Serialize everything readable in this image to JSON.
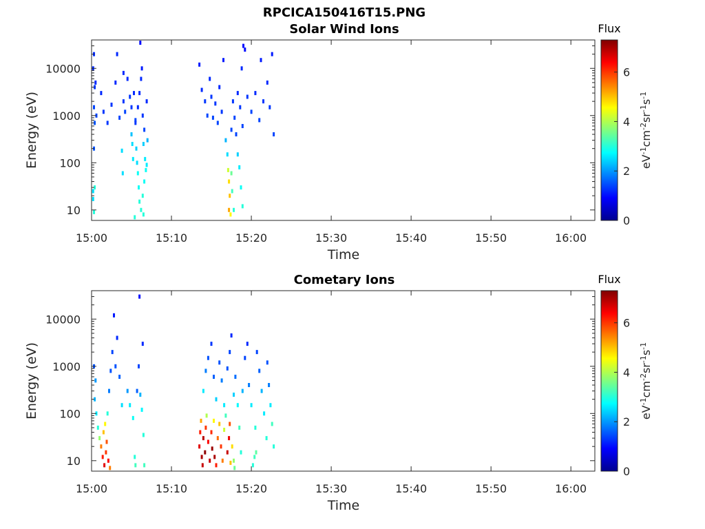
{
  "figure_title": "RPCICA150416T15.PNG",
  "colormap": [
    "#00008f",
    "#0000ff",
    "#0080ff",
    "#00ffff",
    "#80ff80",
    "#ffff00",
    "#ff8000",
    "#ff0000",
    "#800000"
  ],
  "chart_data": [
    {
      "type": "heatmap",
      "title": "Solar Wind Ions",
      "xlabel": "Time",
      "ylabel": "Energy (eV)",
      "x_ticks": [
        "15:00",
        "15:10",
        "15:20",
        "15:30",
        "15:40",
        "15:50",
        "16:00"
      ],
      "xlim_minutes": [
        0,
        63
      ],
      "y_scale": "log",
      "y_ticks": [
        "10",
        "100",
        "1000",
        "10000"
      ],
      "ylim": [
        6,
        40000
      ],
      "colorbar": {
        "title": "Flux",
        "ticks": [
          "0",
          "2",
          "4",
          "6"
        ],
        "range": [
          0,
          7.3
        ],
        "unit_base": [
          "eV",
          "cm",
          "sr",
          "s"
        ],
        "unit_exp": [
          "-1",
          "-2",
          "-1",
          "-1"
        ]
      },
      "points": [
        [
          0.2,
          17,
          2.5
        ],
        [
          0.2,
          25,
          2.5
        ],
        [
          0.3,
          200,
          1.5
        ],
        [
          0.4,
          700,
          1.5
        ],
        [
          0.3,
          1500,
          1.4
        ],
        [
          0.4,
          4000,
          1.3
        ],
        [
          0.2,
          10000,
          1.2
        ],
        [
          0.3,
          20000,
          1.2
        ],
        [
          0.5,
          5000,
          1.2
        ],
        [
          0.6,
          1000,
          1.4
        ],
        [
          0.3,
          9,
          3
        ],
        [
          0.4,
          30,
          3
        ],
        [
          1.2,
          3000,
          1.2
        ],
        [
          1.5,
          1200,
          1.3
        ],
        [
          2.0,
          700,
          1.3
        ],
        [
          2.5,
          1700,
          1.3
        ],
        [
          3.0,
          5000,
          1.2
        ],
        [
          3.2,
          20000,
          1.2
        ],
        [
          3.5,
          900,
          1.4
        ],
        [
          4.0,
          2000,
          1.3
        ],
        [
          4.5,
          6000,
          1.2
        ],
        [
          4.0,
          8000,
          1.2
        ],
        [
          3.8,
          180,
          2.5
        ],
        [
          3.9,
          60,
          2.5
        ],
        [
          4.2,
          1200,
          1.4
        ],
        [
          5.0,
          400,
          2.3
        ],
        [
          5.1,
          250,
          2.5
        ],
        [
          5.2,
          120,
          2.6
        ],
        [
          5.0,
          1500,
          1.3
        ],
        [
          5.3,
          3000,
          1.2
        ],
        [
          5.5,
          800,
          1.4
        ],
        [
          5.6,
          200,
          2.4
        ],
        [
          5.7,
          100,
          2.5
        ],
        [
          5.8,
          60,
          2.8
        ],
        [
          5.9,
          30,
          2.8
        ],
        [
          6.0,
          15,
          3
        ],
        [
          5.4,
          7,
          3
        ],
        [
          5.5,
          700,
          1.3
        ],
        [
          5.8,
          1500,
          1.2
        ],
        [
          6.0,
          3000,
          1.2
        ],
        [
          6.2,
          6000,
          1.2
        ],
        [
          6.3,
          10000,
          1.1
        ],
        [
          6.1,
          35000,
          1.0
        ],
        [
          6.4,
          1000,
          1.3
        ],
        [
          6.6,
          500,
          1.4
        ],
        [
          6.5,
          250,
          2.4
        ],
        [
          6.7,
          120,
          2.6
        ],
        [
          6.8,
          70,
          2.8
        ],
        [
          6.6,
          40,
          2.8
        ],
        [
          6.4,
          20,
          3.0
        ],
        [
          6.2,
          10,
          3.0
        ],
        [
          6.5,
          8,
          3.0
        ],
        [
          4.8,
          2500,
          1.3
        ],
        [
          6.9,
          2000,
          1.2
        ],
        [
          7.0,
          300,
          2.2
        ],
        [
          6.9,
          90,
          2.6
        ],
        [
          13.5,
          12000,
          1.1
        ],
        [
          13.8,
          3500,
          1.2
        ],
        [
          14.2,
          2000,
          1.3
        ],
        [
          14.5,
          1000,
          1.4
        ],
        [
          14.8,
          6000,
          1.2
        ],
        [
          15.0,
          2500,
          1.3
        ],
        [
          15.2,
          900,
          1.4
        ],
        [
          15.5,
          1800,
          1.3
        ],
        [
          15.8,
          700,
          1.4
        ],
        [
          16.0,
          4000,
          1.2
        ],
        [
          16.3,
          1200,
          1.3
        ],
        [
          16.5,
          15000,
          1.1
        ],
        [
          16.8,
          300,
          2.2
        ],
        [
          17.0,
          150,
          2.5
        ],
        [
          17.1,
          70,
          4.2
        ],
        [
          17.2,
          40,
          4.8
        ],
        [
          17.3,
          20,
          5.0
        ],
        [
          17.2,
          10,
          5.2
        ],
        [
          17.4,
          8,
          4.6
        ],
        [
          17.5,
          60,
          3.5
        ],
        [
          17.6,
          25,
          3.2
        ],
        [
          17.8,
          10,
          3.0
        ],
        [
          17.5,
          500,
          1.4
        ],
        [
          17.7,
          2000,
          1.3
        ],
        [
          17.9,
          900,
          1.4
        ],
        [
          18.1,
          400,
          1.4
        ],
        [
          18.3,
          150,
          2.4
        ],
        [
          18.5,
          80,
          2.6
        ],
        [
          18.7,
          30,
          2.8
        ],
        [
          18.9,
          12,
          3.0
        ],
        [
          18.3,
          3000,
          1.2
        ],
        [
          18.6,
          1500,
          1.3
        ],
        [
          18.9,
          600,
          1.4
        ],
        [
          19.0,
          30000,
          1.0
        ],
        [
          19.2,
          25000,
          1.0
        ],
        [
          18.8,
          10000,
          1.2
        ],
        [
          19.5,
          2500,
          1.3
        ],
        [
          20.0,
          1200,
          1.4
        ],
        [
          20.5,
          3000,
          1.2
        ],
        [
          21.0,
          800,
          1.4
        ],
        [
          21.5,
          2000,
          1.3
        ],
        [
          22.0,
          5000,
          1.2
        ],
        [
          22.3,
          1500,
          1.3
        ],
        [
          22.6,
          20000,
          1.1
        ],
        [
          22.8,
          400,
          1.4
        ],
        [
          21.2,
          15000,
          1.1
        ]
      ]
    },
    {
      "type": "heatmap",
      "title": "Cometary Ions",
      "xlabel": "Time",
      "ylabel": "Energy (eV)",
      "x_ticks": [
        "15:00",
        "15:10",
        "15:20",
        "15:30",
        "15:40",
        "15:50",
        "16:00"
      ],
      "xlim_minutes": [
        0,
        63
      ],
      "y_scale": "log",
      "y_ticks": [
        "10",
        "100",
        "1000",
        "10000"
      ],
      "ylim": [
        6,
        40000
      ],
      "colorbar": {
        "title": "Flux",
        "ticks": [
          "0",
          "2",
          "4",
          "6"
        ],
        "range": [
          0,
          7.3
        ],
        "unit_base": [
          "eV",
          "cm",
          "sr",
          "s"
        ],
        "unit_exp": [
          "-1",
          "-2",
          "-1",
          "-1"
        ]
      },
      "points": [
        [
          0.3,
          1000,
          1.5
        ],
        [
          0.5,
          500,
          2.0
        ],
        [
          0.4,
          200,
          2.2
        ],
        [
          0.6,
          100,
          2.6
        ],
        [
          0.8,
          50,
          3.0
        ],
        [
          1.0,
          30,
          3.8
        ],
        [
          1.2,
          20,
          5.5
        ],
        [
          1.4,
          12,
          6.2
        ],
        [
          1.6,
          8,
          6.6
        ],
        [
          1.8,
          15,
          6.0
        ],
        [
          1.5,
          40,
          5.0
        ],
        [
          1.7,
          60,
          4.6
        ],
        [
          1.9,
          25,
          5.8
        ],
        [
          2.1,
          10,
          6.4
        ],
        [
          2.3,
          7,
          5.5
        ],
        [
          2.0,
          100,
          3.0
        ],
        [
          2.2,
          300,
          1.8
        ],
        [
          2.4,
          800,
          1.5
        ],
        [
          2.6,
          2000,
          1.4
        ],
        [
          2.8,
          12000,
          1.1
        ],
        [
          3.2,
          4000,
          1.2
        ],
        [
          3.5,
          600,
          1.6
        ],
        [
          3.8,
          150,
          2.5
        ],
        [
          3.0,
          1000,
          1.5
        ],
        [
          4.5,
          300,
          2.0
        ],
        [
          4.8,
          150,
          2.6
        ],
        [
          5.2,
          80,
          2.8
        ],
        [
          5.4,
          12,
          3.0
        ],
        [
          5.5,
          8,
          3.2
        ],
        [
          5.7,
          300,
          1.6
        ],
        [
          5.9,
          1000,
          1.4
        ],
        [
          6.0,
          30000,
          1.0
        ],
        [
          6.1,
          250,
          2.2
        ],
        [
          6.3,
          120,
          2.7
        ],
        [
          6.5,
          35,
          3.0
        ],
        [
          6.6,
          8,
          3.2
        ],
        [
          6.4,
          3000,
          1.2
        ],
        [
          13.5,
          20,
          6.6
        ],
        [
          13.6,
          40,
          6.2
        ],
        [
          13.7,
          70,
          5.2
        ],
        [
          13.8,
          12,
          7.0
        ],
        [
          13.9,
          8,
          6.8
        ],
        [
          14.0,
          30,
          6.9
        ],
        [
          14.2,
          15,
          7.2
        ],
        [
          14.3,
          50,
          6.0
        ],
        [
          14.4,
          90,
          4.0
        ],
        [
          14.6,
          25,
          6.4
        ],
        [
          14.8,
          10,
          6.8
        ],
        [
          15.0,
          40,
          6.1
        ],
        [
          15.1,
          18,
          7.1
        ],
        [
          15.3,
          70,
          4.6
        ],
        [
          15.4,
          12,
          7.0
        ],
        [
          15.6,
          8,
          6.2
        ],
        [
          15.8,
          30,
          5.6
        ],
        [
          16.0,
          60,
          5.0
        ],
        [
          16.2,
          20,
          6.0
        ],
        [
          16.4,
          10,
          5.5
        ],
        [
          16.6,
          45,
          4.2
        ],
        [
          16.8,
          90,
          3.2
        ],
        [
          17.0,
          15,
          6.8
        ],
        [
          17.2,
          30,
          6.5
        ],
        [
          17.3,
          60,
          5.8
        ],
        [
          17.4,
          9,
          5.0
        ],
        [
          17.6,
          20,
          4.8
        ],
        [
          17.8,
          10,
          3.8
        ],
        [
          17.9,
          7,
          3.5
        ],
        [
          14.0,
          300,
          2.6
        ],
        [
          14.3,
          800,
          1.8
        ],
        [
          14.6,
          1500,
          1.5
        ],
        [
          15.0,
          3000,
          1.3
        ],
        [
          15.3,
          600,
          1.6
        ],
        [
          15.6,
          200,
          2.4
        ],
        [
          16.0,
          1200,
          1.5
        ],
        [
          16.3,
          500,
          1.8
        ],
        [
          16.6,
          150,
          2.6
        ],
        [
          17.0,
          900,
          1.5
        ],
        [
          17.3,
          2000,
          1.4
        ],
        [
          17.5,
          4500,
          1.2
        ],
        [
          17.8,
          250,
          2.4
        ],
        [
          18.0,
          600,
          1.7
        ],
        [
          18.3,
          150,
          2.7
        ],
        [
          18.5,
          50,
          3.2
        ],
        [
          18.7,
          15,
          3.0
        ],
        [
          18.9,
          300,
          2.2
        ],
        [
          19.2,
          1500,
          1.4
        ],
        [
          19.5,
          3000,
          1.2
        ],
        [
          19.7,
          400,
          1.8
        ],
        [
          20.0,
          150,
          2.6
        ],
        [
          20.2,
          8,
          3.0
        ],
        [
          20.4,
          12,
          3.2
        ],
        [
          20.5,
          50,
          3.0
        ],
        [
          20.7,
          2000,
          1.4
        ],
        [
          21.0,
          800,
          1.6
        ],
        [
          21.3,
          300,
          2.2
        ],
        [
          21.6,
          100,
          2.6
        ],
        [
          21.9,
          30,
          3.0
        ],
        [
          22.0,
          1200,
          1.5
        ],
        [
          22.2,
          400,
          1.8
        ],
        [
          22.4,
          150,
          2.6
        ],
        [
          22.6,
          60,
          3.2
        ],
        [
          22.8,
          20,
          3.0
        ],
        [
          20.6,
          15,
          3.4
        ]
      ]
    }
  ]
}
